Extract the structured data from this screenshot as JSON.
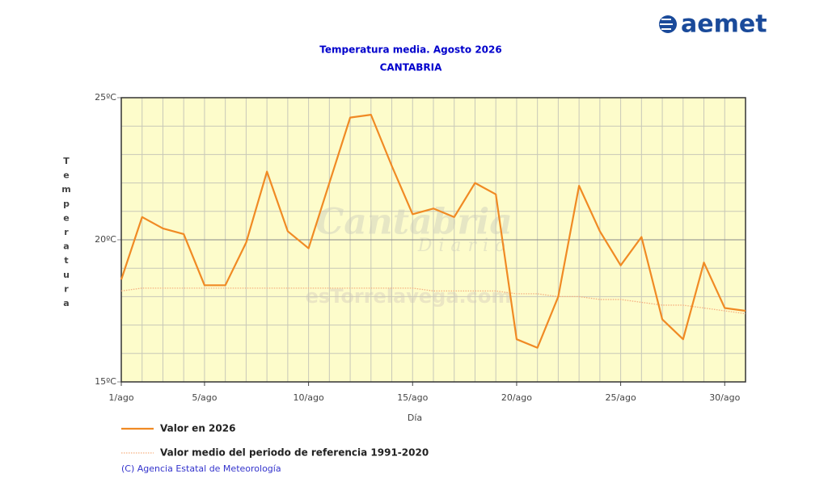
{
  "chart_data": {
    "type": "line",
    "title": "Temperatura media. Agosto 2026",
    "subtitle": "CANTABRIA",
    "ylabel": "Temperatura",
    "xlabel": "Día",
    "logo": "aemet",
    "watermark": [
      "Cantabria",
      "Diario",
      "esTorrelavega.com"
    ],
    "copyright": "(C) Agencia Estatal de Meteorología",
    "x": [
      1,
      2,
      3,
      4,
      5,
      6,
      7,
      8,
      9,
      10,
      11,
      12,
      13,
      14,
      15,
      16,
      17,
      18,
      19,
      20,
      21,
      22,
      23,
      24,
      25,
      26,
      27,
      28,
      29,
      30,
      31
    ],
    "series": [
      {
        "name": "Valor en 2026",
        "color": "#f08a24",
        "style": "solid",
        "values": [
          18.6,
          20.8,
          20.4,
          20.2,
          18.4,
          18.4,
          19.9,
          22.4,
          20.3,
          19.7,
          22.0,
          24.3,
          24.4,
          22.6,
          20.9,
          21.1,
          20.8,
          22.0,
          21.6,
          16.5,
          16.2,
          18.0,
          21.9,
          20.3,
          19.1,
          20.1,
          17.2,
          16.5,
          19.2,
          17.6,
          17.5
        ]
      },
      {
        "name": "Valor medio del periodo de referencia 1991-2020",
        "color": "#f5b080",
        "style": "dotted",
        "values": [
          18.2,
          18.3,
          18.3,
          18.3,
          18.3,
          18.3,
          18.3,
          18.3,
          18.3,
          18.3,
          18.3,
          18.3,
          18.3,
          18.3,
          18.3,
          18.2,
          18.2,
          18.2,
          18.2,
          18.1,
          18.1,
          18.0,
          18.0,
          17.9,
          17.9,
          17.8,
          17.7,
          17.7,
          17.6,
          17.5,
          17.4
        ]
      }
    ],
    "xlim": [
      1,
      31
    ],
    "xticks": [
      {
        "value": 1,
        "label": "1/ago"
      },
      {
        "value": 5,
        "label": "5/ago"
      },
      {
        "value": 10,
        "label": "10/ago"
      },
      {
        "value": 15,
        "label": "15/ago"
      },
      {
        "value": 20,
        "label": "20/ago"
      },
      {
        "value": 25,
        "label": "25/ago"
      },
      {
        "value": 30,
        "label": "30/ago"
      }
    ],
    "ylim": [
      15,
      25
    ],
    "yticks": [
      {
        "value": 15,
        "label": "15ºC"
      },
      {
        "value": 20,
        "label": "20ºC"
      },
      {
        "value": 25,
        "label": "25ºC"
      }
    ],
    "ygrid": [
      16,
      17,
      18,
      19,
      21,
      22,
      23,
      24
    ],
    "grid": true,
    "plot_background": "#fdfccb"
  }
}
